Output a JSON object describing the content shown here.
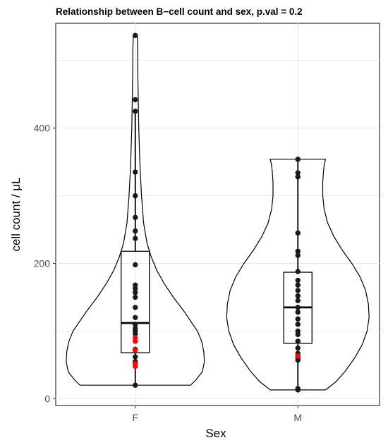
{
  "chart_data": {
    "type": "violin",
    "title": "Relationship between B−cell count and sex, p.val = 0.2",
    "xlabel": "Sex",
    "ylabel": "cell count / μL",
    "categories": [
      "F",
      "M"
    ],
    "ylim": [
      -10,
      555
    ],
    "yticks": [
      0,
      200,
      400
    ],
    "ytick_labels": [
      "0",
      "200",
      "400"
    ],
    "grid": true,
    "groups": [
      {
        "name": "F",
        "min": 20,
        "q1": 68,
        "median": 112,
        "q3": 218,
        "max": 537,
        "whisker_low": 20,
        "whisker_high": 425,
        "violin_profile": [
          [
            20,
            0.8
          ],
          [
            28,
            0.88
          ],
          [
            40,
            0.97
          ],
          [
            55,
            1.0
          ],
          [
            70,
            0.99
          ],
          [
            85,
            0.96
          ],
          [
            100,
            0.9
          ],
          [
            115,
            0.8
          ],
          [
            130,
            0.7
          ],
          [
            150,
            0.55
          ],
          [
            170,
            0.42
          ],
          [
            190,
            0.31
          ],
          [
            210,
            0.23
          ],
          [
            230,
            0.17
          ],
          [
            260,
            0.12
          ],
          [
            300,
            0.09
          ],
          [
            340,
            0.07
          ],
          [
            370,
            0.06
          ],
          [
            400,
            0.05
          ],
          [
            430,
            0.045
          ],
          [
            460,
            0.04
          ],
          [
            490,
            0.035
          ],
          [
            515,
            0.035
          ],
          [
            530,
            0.03
          ],
          [
            537,
            0.03
          ]
        ],
        "points": [
          537,
          442,
          425,
          335,
          300,
          268,
          248,
          237,
          198,
          168,
          163,
          157,
          150,
          135,
          120,
          110,
          104,
          100,
          96,
          73,
          62,
          55,
          20
        ],
        "highlight_points": [
          90,
          85,
          72,
          52,
          48
        ]
      },
      {
        "name": "M",
        "min": 13,
        "q1": 82,
        "median": 135,
        "q3": 187,
        "max": 354,
        "whisker_low": 13,
        "whisker_high": 354,
        "violin_profile": [
          [
            13,
            0.4
          ],
          [
            25,
            0.55
          ],
          [
            40,
            0.68
          ],
          [
            60,
            0.82
          ],
          [
            80,
            0.93
          ],
          [
            100,
            1.0
          ],
          [
            120,
            1.03
          ],
          [
            140,
            1.02
          ],
          [
            160,
            0.98
          ],
          [
            180,
            0.9
          ],
          [
            200,
            0.78
          ],
          [
            220,
            0.64
          ],
          [
            240,
            0.52
          ],
          [
            260,
            0.43
          ],
          [
            280,
            0.38
          ],
          [
            300,
            0.36
          ],
          [
            320,
            0.36
          ],
          [
            335,
            0.37
          ],
          [
            345,
            0.38
          ],
          [
            354,
            0.4
          ]
        ],
        "points": [
          354,
          334,
          328,
          245,
          218,
          212,
          188,
          175,
          168,
          160,
          152,
          145,
          135,
          128,
          118,
          110,
          100,
          95,
          85,
          75,
          67,
          60,
          57,
          15,
          13
        ],
        "highlight_points": [
          63
        ]
      }
    ],
    "colors": {
      "point": "#1a1a1a",
      "highlight": "#ff0000",
      "grid": "#ebebeb",
      "line": "#000000",
      "tick": "#4d4d4d"
    }
  }
}
